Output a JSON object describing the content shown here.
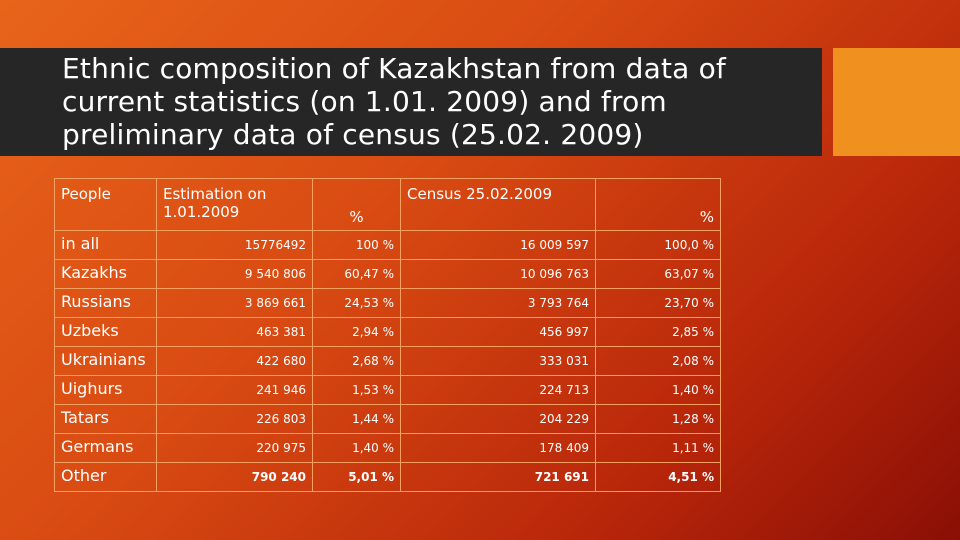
{
  "title": "Ethnic composition of Kazakhstan from data of current statistics (on 1.01. 2009) and from preliminary data of census (25.02. 2009)",
  "table": {
    "headers": {
      "people": "People",
      "estimation": "Estimation on 1.01.2009",
      "pct1": "%",
      "census": "Census 25.02.2009",
      "pct2": "%"
    },
    "rows": [
      {
        "people": "in all",
        "estimation": "15776492",
        "pct1": "100 %",
        "census": "16 009 597",
        "pct2": "100,0 %"
      },
      {
        "people": "Kazakhs",
        "estimation": "9 540 806",
        "pct1": "60,47 %",
        "census": "10 096 763",
        "pct2": "63,07 %"
      },
      {
        "people": "Russians",
        "estimation": "3 869 661",
        "pct1": "24,53 %",
        "census": "3 793 764",
        "pct2": "23,70 %"
      },
      {
        "people": "Uzbeks",
        "estimation": "463 381",
        "pct1": "2,94 %",
        "census": "456 997",
        "pct2": "2,85 %"
      },
      {
        "people": "Ukrainians",
        "estimation": "422 680",
        "pct1": "2,68 %",
        "census": "333 031",
        "pct2": "2,08 %"
      },
      {
        "people": "Uighurs",
        "estimation": "241 946",
        "pct1": "1,53 %",
        "census": "224 713",
        "pct2": "1,40 %"
      },
      {
        "people": "Tatars",
        "estimation": "226 803",
        "pct1": "1,44 %",
        "census": "204 229",
        "pct2": "1,28 %"
      },
      {
        "people": "Germans",
        "estimation": "220 975",
        "pct1": "1,40 %",
        "census": "178 409",
        "pct2": "1,11 %"
      },
      {
        "people": "Other",
        "estimation": "790 240",
        "pct1": "5,01 %",
        "census": "721 691",
        "pct2": "4,51 %"
      }
    ]
  },
  "colors": {
    "title_bar": "#262626",
    "accent": "#f0901e",
    "border": "#f0a060"
  }
}
